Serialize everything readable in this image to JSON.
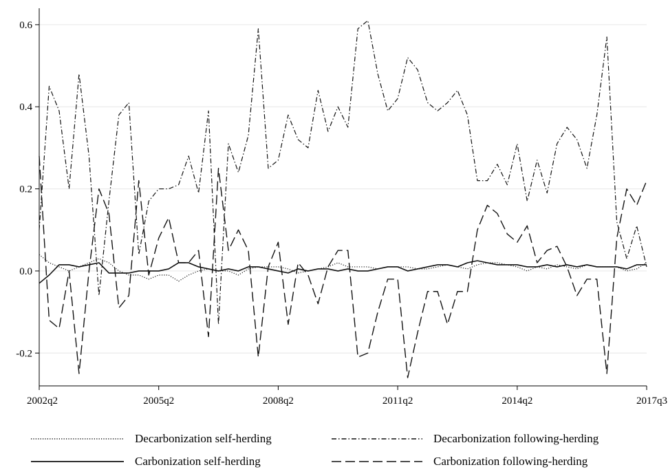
{
  "chart_data": {
    "type": "line",
    "title": "",
    "xlabel": "",
    "ylabel": "",
    "x_ticks": [
      "2002q2",
      "2005q2",
      "2008q2",
      "2011q2",
      "2014q2",
      "2017q3"
    ],
    "y_ticks": [
      "-0.2",
      "0.0",
      "0.2",
      "0.4",
      "0.6"
    ],
    "y_tick_values": [
      -0.2,
      0.0,
      0.2,
      0.4,
      0.6
    ],
    "ylim": [
      -0.28,
      0.64
    ],
    "x_range": [
      "2002q2",
      "2017q3"
    ],
    "grid": "horizontal",
    "legend_position": "bottom",
    "series": [
      {
        "name": "Decarbonization self-herding",
        "style": "dotted",
        "points": [
          [
            "2002q2",
            0.04
          ],
          [
            "2002q3",
            0.02
          ],
          [
            "2002q4",
            0.01
          ],
          [
            "2003q1",
            0.0
          ],
          [
            "2003q2",
            0.01
          ],
          [
            "2003q3",
            0.02
          ],
          [
            "2003q4",
            0.03
          ],
          [
            "2004q1",
            0.02
          ],
          [
            "2004q2",
            0.0
          ],
          [
            "2004q3",
            -0.01
          ],
          [
            "2004q4",
            -0.01
          ],
          [
            "2005q1",
            -0.02
          ],
          [
            "2005q2",
            -0.01
          ],
          [
            "2005q3",
            -0.01
          ],
          [
            "2005q4",
            -0.025
          ],
          [
            "2006q1",
            -0.01
          ],
          [
            "2006q2",
            0.0
          ],
          [
            "2006q3",
            0.005
          ],
          [
            "2006q4",
            0.0
          ],
          [
            "2007q1",
            0.0
          ],
          [
            "2007q2",
            -0.01
          ],
          [
            "2007q3",
            0.005
          ],
          [
            "2007q4",
            0.01
          ],
          [
            "2008q1",
            0.01
          ],
          [
            "2008q2",
            0.01
          ],
          [
            "2008q3",
            0.005
          ],
          [
            "2008q4",
            -0.005
          ],
          [
            "2009q1",
            0.0
          ],
          [
            "2009q2",
            0.005
          ],
          [
            "2009q3",
            0.01
          ],
          [
            "2009q4",
            0.02
          ],
          [
            "2010q1",
            0.01
          ],
          [
            "2010q2",
            0.01
          ],
          [
            "2010q3",
            0.01
          ],
          [
            "2010q4",
            0.005
          ],
          [
            "2011q1",
            0.01
          ],
          [
            "2011q2",
            0.01
          ],
          [
            "2011q3",
            0.01
          ],
          [
            "2011q4",
            0.005
          ],
          [
            "2012q1",
            0.005
          ],
          [
            "2012q2",
            0.01
          ],
          [
            "2012q3",
            0.015
          ],
          [
            "2012q4",
            0.01
          ],
          [
            "2013q1",
            0.005
          ],
          [
            "2013q2",
            0.015
          ],
          [
            "2013q3",
            0.02
          ],
          [
            "2013q4",
            0.02
          ],
          [
            "2014q1",
            0.015
          ],
          [
            "2014q2",
            0.01
          ],
          [
            "2014q3",
            0.0
          ],
          [
            "2014q4",
            0.01
          ],
          [
            "2015q1",
            0.005
          ],
          [
            "2015q2",
            0.015
          ],
          [
            "2015q3",
            0.01
          ],
          [
            "2015q4",
            0.005
          ],
          [
            "2016q1",
            0.015
          ],
          [
            "2016q2",
            0.01
          ],
          [
            "2016q3",
            0.01
          ],
          [
            "2016q4",
            0.01
          ],
          [
            "2017q1",
            0.0
          ],
          [
            "2017q2",
            0.005
          ],
          [
            "2017q3",
            0.02
          ]
        ]
      },
      {
        "name": "Decarbonization following-herding",
        "style": "dash-dot",
        "points": [
          [
            "2002q2",
            0.1
          ],
          [
            "2002q3",
            0.45
          ],
          [
            "2002q4",
            0.39
          ],
          [
            "2003q1",
            0.2
          ],
          [
            "2003q2",
            0.48
          ],
          [
            "2003q3",
            0.28
          ],
          [
            "2003q4",
            -0.06
          ],
          [
            "2004q1",
            0.17
          ],
          [
            "2004q2",
            0.38
          ],
          [
            "2004q3",
            0.41
          ],
          [
            "2004q4",
            0.04
          ],
          [
            "2005q1",
            0.17
          ],
          [
            "2005q2",
            0.2
          ],
          [
            "2005q3",
            0.2
          ],
          [
            "2005q4",
            0.21
          ],
          [
            "2006q1",
            0.28
          ],
          [
            "2006q2",
            0.19
          ],
          [
            "2006q3",
            0.39
          ],
          [
            "2006q4",
            -0.13
          ],
          [
            "2007q1",
            0.31
          ],
          [
            "2007q2",
            0.24
          ],
          [
            "2007q3",
            0.33
          ],
          [
            "2007q4",
            0.59
          ],
          [
            "2008q1",
            0.25
          ],
          [
            "2008q2",
            0.27
          ],
          [
            "2008q3",
            0.38
          ],
          [
            "2008q4",
            0.32
          ],
          [
            "2009q1",
            0.3
          ],
          [
            "2009q2",
            0.44
          ],
          [
            "2009q3",
            0.34
          ],
          [
            "2009q4",
            0.4
          ],
          [
            "2010q1",
            0.35
          ],
          [
            "2010q2",
            0.59
          ],
          [
            "2010q3",
            0.61
          ],
          [
            "2010q4",
            0.48
          ],
          [
            "2011q1",
            0.39
          ],
          [
            "2011q2",
            0.42
          ],
          [
            "2011q3",
            0.52
          ],
          [
            "2011q4",
            0.49
          ],
          [
            "2012q1",
            0.41
          ],
          [
            "2012q2",
            0.39
          ],
          [
            "2012q3",
            0.41
          ],
          [
            "2012q4",
            0.44
          ],
          [
            "2013q1",
            0.38
          ],
          [
            "2013q2",
            0.22
          ],
          [
            "2013q3",
            0.22
          ],
          [
            "2013q4",
            0.26
          ],
          [
            "2014q1",
            0.21
          ],
          [
            "2014q2",
            0.31
          ],
          [
            "2014q3",
            0.17
          ],
          [
            "2014q4",
            0.27
          ],
          [
            "2015q1",
            0.19
          ],
          [
            "2015q2",
            0.31
          ],
          [
            "2015q3",
            0.35
          ],
          [
            "2015q4",
            0.32
          ],
          [
            "2016q1",
            0.25
          ],
          [
            "2016q2",
            0.38
          ],
          [
            "2016q3",
            0.57
          ],
          [
            "2016q4",
            0.12
          ],
          [
            "2017q1",
            0.03
          ],
          [
            "2017q2",
            0.11
          ],
          [
            "2017q3",
            0.01
          ]
        ]
      },
      {
        "name": "Carbonization self-herding",
        "style": "solid",
        "points": [
          [
            "2002q2",
            -0.03
          ],
          [
            "2002q3",
            -0.01
          ],
          [
            "2002q4",
            0.015
          ],
          [
            "2003q1",
            0.015
          ],
          [
            "2003q2",
            0.01
          ],
          [
            "2003q3",
            0.015
          ],
          [
            "2003q4",
            0.02
          ],
          [
            "2004q1",
            -0.005
          ],
          [
            "2004q2",
            -0.005
          ],
          [
            "2004q3",
            -0.005
          ],
          [
            "2004q4",
            0.0
          ],
          [
            "2005q1",
            0.0
          ],
          [
            "2005q2",
            0.0
          ],
          [
            "2005q3",
            0.005
          ],
          [
            "2005q4",
            0.02
          ],
          [
            "2006q1",
            0.02
          ],
          [
            "2006q2",
            0.01
          ],
          [
            "2006q3",
            0.005
          ],
          [
            "2006q4",
            0.0
          ],
          [
            "2007q1",
            0.005
          ],
          [
            "2007q2",
            0.0
          ],
          [
            "2007q3",
            0.01
          ],
          [
            "2007q4",
            0.01
          ],
          [
            "2008q1",
            0.005
          ],
          [
            "2008q2",
            0.0
          ],
          [
            "2008q3",
            -0.005
          ],
          [
            "2008q4",
            0.005
          ],
          [
            "2009q1",
            0.0
          ],
          [
            "2009q2",
            0.005
          ],
          [
            "2009q3",
            0.005
          ],
          [
            "2009q4",
            0.0
          ],
          [
            "2010q1",
            0.005
          ],
          [
            "2010q2",
            0.0
          ],
          [
            "2010q3",
            0.0
          ],
          [
            "2010q4",
            0.005
          ],
          [
            "2011q1",
            0.01
          ],
          [
            "2011q2",
            0.01
          ],
          [
            "2011q3",
            0.0
          ],
          [
            "2011q4",
            0.005
          ],
          [
            "2012q1",
            0.01
          ],
          [
            "2012q2",
            0.015
          ],
          [
            "2012q3",
            0.015
          ],
          [
            "2012q4",
            0.01
          ],
          [
            "2013q1",
            0.02
          ],
          [
            "2013q2",
            0.025
          ],
          [
            "2013q3",
            0.02
          ],
          [
            "2013q4",
            0.015
          ],
          [
            "2014q1",
            0.015
          ],
          [
            "2014q2",
            0.015
          ],
          [
            "2014q3",
            0.01
          ],
          [
            "2014q4",
            0.01
          ],
          [
            "2015q1",
            0.015
          ],
          [
            "2015q2",
            0.01
          ],
          [
            "2015q3",
            0.015
          ],
          [
            "2015q4",
            0.01
          ],
          [
            "2016q1",
            0.015
          ],
          [
            "2016q2",
            0.01
          ],
          [
            "2016q3",
            0.01
          ],
          [
            "2016q4",
            0.01
          ],
          [
            "2017q1",
            0.005
          ],
          [
            "2017q2",
            0.015
          ],
          [
            "2017q3",
            0.015
          ]
        ]
      },
      {
        "name": "Carbonization following-herding",
        "style": "dashed",
        "points": [
          [
            "2002q2",
            0.28
          ],
          [
            "2002q3",
            -0.12
          ],
          [
            "2002q4",
            -0.14
          ],
          [
            "2003q1",
            0.0
          ],
          [
            "2003q2",
            -0.25
          ],
          [
            "2003q3",
            0.0
          ],
          [
            "2003q4",
            0.2
          ],
          [
            "2004q1",
            0.14
          ],
          [
            "2004q2",
            -0.09
          ],
          [
            "2004q3",
            -0.06
          ],
          [
            "2004q4",
            0.22
          ],
          [
            "2005q1",
            -0.01
          ],
          [
            "2005q2",
            0.08
          ],
          [
            "2005q3",
            0.13
          ],
          [
            "2005q4",
            0.02
          ],
          [
            "2006q1",
            0.02
          ],
          [
            "2006q2",
            0.05
          ],
          [
            "2006q3",
            -0.16
          ],
          [
            "2006q4",
            0.25
          ],
          [
            "2007q1",
            0.05
          ],
          [
            "2007q2",
            0.1
          ],
          [
            "2007q3",
            0.05
          ],
          [
            "2007q4",
            -0.21
          ],
          [
            "2008q1",
            0.01
          ],
          [
            "2008q2",
            0.07
          ],
          [
            "2008q3",
            -0.13
          ],
          [
            "2008q4",
            0.02
          ],
          [
            "2009q1",
            -0.01
          ],
          [
            "2009q2",
            -0.08
          ],
          [
            "2009q3",
            0.01
          ],
          [
            "2009q4",
            0.05
          ],
          [
            "2010q1",
            0.05
          ],
          [
            "2010q2",
            -0.21
          ],
          [
            "2010q3",
            -0.2
          ],
          [
            "2010q4",
            -0.1
          ],
          [
            "2011q1",
            -0.02
          ],
          [
            "2011q2",
            -0.02
          ],
          [
            "2011q3",
            -0.26
          ],
          [
            "2011q4",
            -0.15
          ],
          [
            "2012q1",
            -0.05
          ],
          [
            "2012q2",
            -0.05
          ],
          [
            "2012q3",
            -0.13
          ],
          [
            "2012q4",
            -0.05
          ],
          [
            "2013q1",
            -0.05
          ],
          [
            "2013q2",
            0.1
          ],
          [
            "2013q3",
            0.16
          ],
          [
            "2013q4",
            0.14
          ],
          [
            "2014q1",
            0.09
          ],
          [
            "2014q2",
            0.07
          ],
          [
            "2014q3",
            0.11
          ],
          [
            "2014q4",
            0.02
          ],
          [
            "2015q1",
            0.05
          ],
          [
            "2015q2",
            0.06
          ],
          [
            "2015q3",
            0.01
          ],
          [
            "2015q4",
            -0.06
          ],
          [
            "2016q1",
            -0.02
          ],
          [
            "2016q2",
            -0.02
          ],
          [
            "2016q3",
            -0.25
          ],
          [
            "2016q4",
            0.08
          ],
          [
            "2017q1",
            0.2
          ],
          [
            "2017q2",
            0.16
          ],
          [
            "2017q3",
            0.22
          ]
        ]
      }
    ]
  }
}
